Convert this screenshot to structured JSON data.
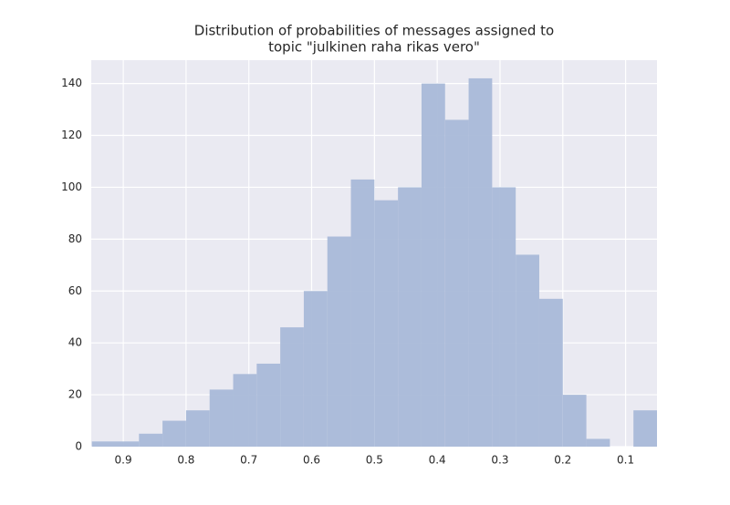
{
  "chart_data": {
    "type": "histogram",
    "title": [
      "Distribution of probabilities of messages assigned to",
      "topic \"julkinen raha rikas vero\""
    ],
    "bins": [
      0.05,
      0.0875,
      0.125,
      0.1625,
      0.2,
      0.2375,
      0.275,
      0.3125,
      0.35,
      0.3875,
      0.425,
      0.4625,
      0.5,
      0.5375,
      0.575,
      0.6125,
      0.65,
      0.6875,
      0.725,
      0.7625,
      0.8,
      0.8375,
      0.875,
      0.9125,
      0.95
    ],
    "values": [
      14,
      0,
      3,
      20,
      57,
      74,
      100,
      142,
      126,
      140,
      100,
      95,
      103,
      81,
      60,
      46,
      32,
      28,
      22,
      14,
      10,
      5,
      2,
      2
    ],
    "color": "#a9b9d8",
    "xlim": [
      0.951,
      0.05
    ],
    "xticks": [
      0.9,
      0.8,
      0.7,
      0.6,
      0.5,
      0.4,
      0.3,
      0.2,
      0.1
    ],
    "ylim": [
      0,
      149
    ],
    "yticks": [
      0,
      20,
      40,
      60,
      80,
      100,
      120,
      140
    ],
    "grid": true
  }
}
